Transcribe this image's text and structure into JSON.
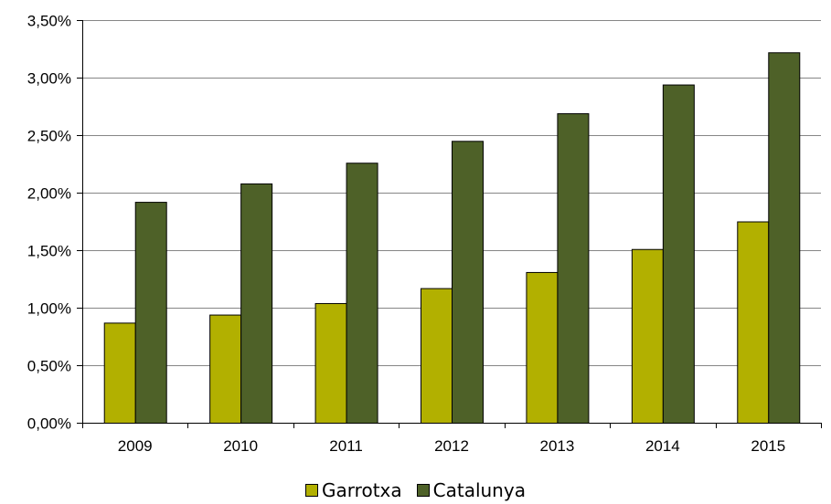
{
  "chart_data": {
    "type": "bar",
    "title": "",
    "xlabel": "",
    "ylabel": "",
    "categories": [
      "2009",
      "2010",
      "2011",
      "2012",
      "2013",
      "2014",
      "2015"
    ],
    "series": [
      {
        "name": "Garrotxa",
        "color": "#b2b000",
        "values": [
          0.87,
          0.94,
          1.04,
          1.17,
          1.31,
          1.51,
          1.75
        ]
      },
      {
        "name": "Catalunya",
        "color": "#4e6128",
        "values": [
          1.92,
          2.08,
          2.26,
          2.45,
          2.69,
          2.94,
          3.22
        ]
      }
    ],
    "ylim": [
      0,
      3.5
    ],
    "yticks": [
      0,
      0.5,
      1.0,
      1.5,
      2.0,
      2.5,
      3.0,
      3.5
    ],
    "ytick_labels": [
      "0,00%",
      "0,50%",
      "1,00%",
      "1,50%",
      "2,00%",
      "2,50%",
      "3,00%",
      "3,50%"
    ],
    "grid": true,
    "legend_position": "bottom-center"
  }
}
